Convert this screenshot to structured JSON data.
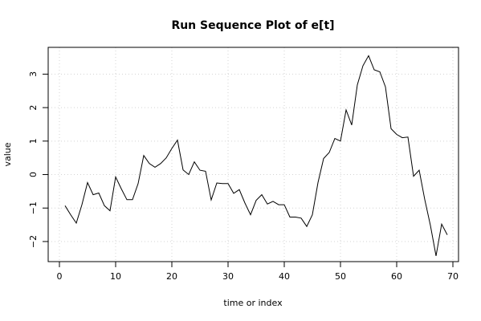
{
  "chart_data": {
    "type": "line",
    "title": "Run Sequence Plot of e[t]",
    "xlabel": "time or index",
    "ylabel": "value",
    "xlim": [
      -2,
      71
    ],
    "ylim": [
      -2.6,
      3.8
    ],
    "x_ticks": [
      0,
      10,
      20,
      30,
      40,
      50,
      60,
      70
    ],
    "y_ticks": [
      -2,
      -1,
      0,
      1,
      2,
      3
    ],
    "grid": true,
    "series": [
      {
        "color": "#000000",
        "x": [
          1,
          2,
          3,
          4,
          5,
          6,
          7,
          8,
          9,
          10,
          11,
          12,
          13,
          14,
          15,
          16,
          17,
          18,
          19,
          20,
          21,
          22,
          23,
          24,
          25,
          26,
          27,
          28,
          29,
          30,
          31,
          32,
          33,
          34,
          35,
          36,
          37,
          38,
          39,
          40,
          41,
          42,
          43,
          44,
          45,
          46,
          47,
          48,
          49,
          50,
          51,
          52,
          53,
          54,
          55,
          56,
          57,
          58,
          59,
          60,
          61,
          62,
          63,
          64,
          65,
          66,
          67,
          68,
          69
        ],
        "values": [
          -0.93,
          -1.2,
          -1.45,
          -0.9,
          -0.24,
          -0.6,
          -0.55,
          -0.93,
          -1.08,
          -0.07,
          -0.42,
          -0.75,
          -0.75,
          -0.27,
          0.57,
          0.33,
          0.22,
          0.33,
          0.5,
          0.78,
          1.03,
          0.14,
          0.0,
          0.38,
          0.13,
          0.1,
          -0.76,
          -0.25,
          -0.27,
          -0.27,
          -0.56,
          -0.45,
          -0.85,
          -1.2,
          -0.77,
          -0.6,
          -0.88,
          -0.8,
          -0.9,
          -0.9,
          -1.27,
          -1.27,
          -1.3,
          -1.55,
          -1.2,
          -0.24,
          0.48,
          0.66,
          1.08,
          1.0,
          1.93,
          1.48,
          2.68,
          3.25,
          3.55,
          3.13,
          3.07,
          2.62,
          1.37,
          1.2,
          1.1,
          1.12,
          -0.05,
          0.13,
          -0.75,
          -1.52,
          -2.43,
          -1.48,
          -1.8
        ]
      }
    ]
  }
}
